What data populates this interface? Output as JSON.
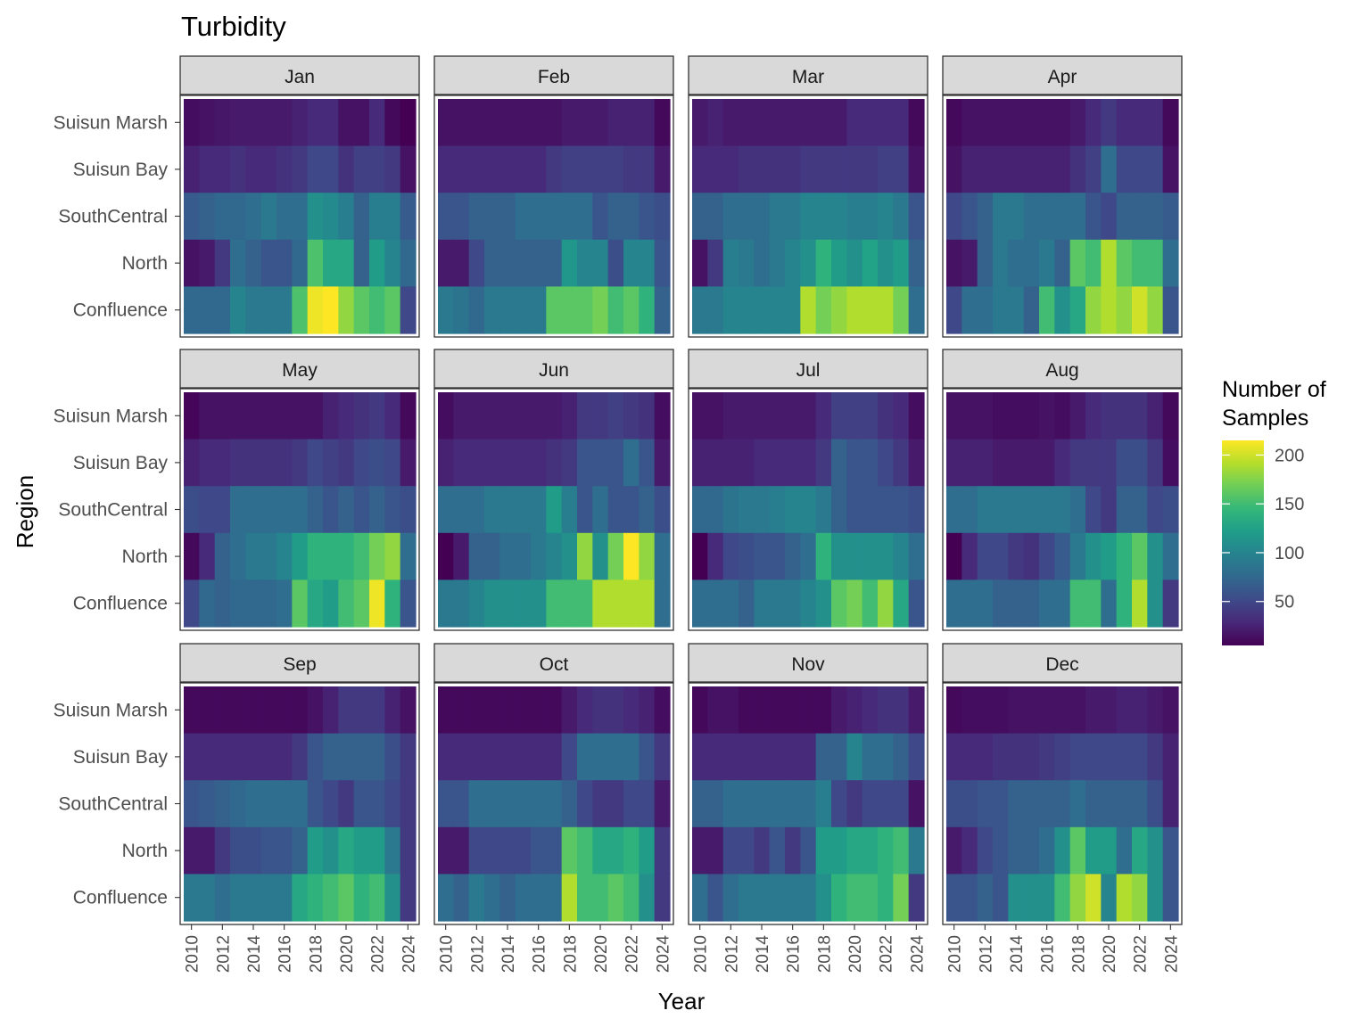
{
  "chart_data": {
    "type": "heatmap",
    "title": "Turbidity",
    "xlabel": "Year",
    "ylabel": "Region",
    "facets": [
      "Jan",
      "Feb",
      "Mar",
      "Apr",
      "May",
      "Jun",
      "Jul",
      "Aug",
      "Sep",
      "Oct",
      "Nov",
      "Dec"
    ],
    "x": [
      2010,
      2011,
      2012,
      2013,
      2014,
      2015,
      2016,
      2017,
      2018,
      2019,
      2020,
      2021,
      2022,
      2023,
      2024
    ],
    "x_ticks": [
      2010,
      2012,
      2014,
      2016,
      2018,
      2020,
      2022,
      2024
    ],
    "regions": [
      "Suisun Marsh",
      "Suisun Bay",
      "SouthCentral",
      "North",
      "Confluence"
    ],
    "legend": {
      "title_line1": "Number of",
      "title_line2": "Samples",
      "ticks": [
        50,
        100,
        150,
        200
      ],
      "min": 5,
      "max": 215,
      "colors": [
        "#440154",
        "#482878",
        "#3e4a89",
        "#31688e",
        "#26828e",
        "#1f9e89",
        "#35b779",
        "#6ece58",
        "#b5de2b",
        "#fde725"
      ]
    },
    "values": {
      "Jan": [
        [
          12,
          15,
          18,
          20,
          20,
          20,
          20,
          25,
          30,
          30,
          15,
          15,
          30,
          10,
          5
        ],
        [
          25,
          30,
          30,
          35,
          30,
          30,
          35,
          40,
          50,
          50,
          35,
          45,
          45,
          40,
          15
        ],
        [
          65,
          70,
          75,
          75,
          80,
          90,
          80,
          80,
          110,
          105,
          95,
          70,
          95,
          95,
          65
        ],
        [
          15,
          20,
          40,
          80,
          70,
          60,
          60,
          75,
          155,
          130,
          130,
          70,
          120,
          100,
          75
        ],
        [
          75,
          75,
          75,
          100,
          90,
          90,
          90,
          155,
          210,
          215,
          180,
          160,
          150,
          160,
          50
        ]
      ],
      "Feb": [
        [
          15,
          15,
          15,
          15,
          15,
          15,
          15,
          15,
          20,
          20,
          20,
          25,
          25,
          25,
          10
        ],
        [
          30,
          30,
          30,
          30,
          30,
          30,
          30,
          40,
          45,
          45,
          45,
          45,
          40,
          40,
          20
        ],
        [
          60,
          60,
          70,
          70,
          70,
          80,
          80,
          80,
          80,
          80,
          60,
          70,
          70,
          60,
          55
        ],
        [
          20,
          20,
          50,
          70,
          70,
          70,
          70,
          70,
          115,
          100,
          100,
          55,
          100,
          100,
          60
        ],
        [
          90,
          85,
          75,
          90,
          90,
          90,
          90,
          160,
          160,
          160,
          170,
          150,
          160,
          140,
          70
        ]
      ],
      "Mar": [
        [
          20,
          25,
          20,
          20,
          20,
          20,
          20,
          20,
          20,
          20,
          30,
          30,
          30,
          30,
          10
        ],
        [
          30,
          30,
          30,
          35,
          35,
          35,
          35,
          40,
          40,
          40,
          40,
          40,
          45,
          45,
          15
        ],
        [
          70,
          70,
          80,
          80,
          80,
          90,
          90,
          100,
          100,
          100,
          95,
          95,
          100,
          90,
          60
        ],
        [
          15,
          40,
          95,
          90,
          80,
          90,
          100,
          110,
          140,
          120,
          110,
          125,
          110,
          120,
          70
        ],
        [
          90,
          90,
          100,
          100,
          100,
          100,
          100,
          190,
          170,
          180,
          190,
          190,
          190,
          170,
          80
        ]
      ],
      "Apr": [
        [
          10,
          15,
          15,
          15,
          15,
          15,
          15,
          15,
          20,
          30,
          40,
          30,
          30,
          30,
          10
        ],
        [
          15,
          25,
          25,
          25,
          25,
          25,
          25,
          25,
          35,
          45,
          80,
          50,
          50,
          50,
          15
        ],
        [
          50,
          60,
          70,
          90,
          90,
          80,
          80,
          80,
          80,
          60,
          50,
          70,
          70,
          70,
          65
        ],
        [
          15,
          20,
          70,
          90,
          80,
          80,
          90,
          70,
          160,
          150,
          190,
          160,
          150,
          150,
          80
        ],
        [
          50,
          80,
          80,
          90,
          90,
          70,
          150,
          110,
          130,
          180,
          190,
          180,
          200,
          180,
          60
        ]
      ],
      "May": [
        [
          8,
          15,
          15,
          15,
          15,
          15,
          15,
          15,
          15,
          25,
          30,
          35,
          40,
          30,
          10
        ],
        [
          25,
          30,
          30,
          35,
          35,
          35,
          35,
          40,
          50,
          45,
          40,
          50,
          55,
          50,
          20
        ],
        [
          55,
          50,
          50,
          80,
          80,
          80,
          80,
          80,
          70,
          60,
          70,
          60,
          70,
          60,
          55
        ],
        [
          10,
          30,
          70,
          80,
          90,
          90,
          100,
          120,
          140,
          140,
          140,
          150,
          170,
          180,
          80
        ],
        [
          50,
          75,
          70,
          75,
          75,
          75,
          80,
          160,
          130,
          120,
          150,
          160,
          210,
          140,
          60
        ]
      ],
      "Jun": [
        [
          12,
          20,
          20,
          20,
          20,
          20,
          20,
          20,
          25,
          40,
          40,
          45,
          40,
          35,
          12
        ],
        [
          25,
          30,
          30,
          30,
          30,
          30,
          30,
          35,
          40,
          60,
          60,
          60,
          80,
          60,
          20
        ],
        [
          80,
          80,
          80,
          90,
          90,
          90,
          90,
          120,
          95,
          60,
          80,
          60,
          60,
          70,
          55
        ],
        [
          5,
          20,
          70,
          70,
          80,
          80,
          90,
          100,
          110,
          180,
          110,
          170,
          215,
          180,
          80
        ],
        [
          90,
          90,
          100,
          110,
          110,
          110,
          110,
          150,
          150,
          150,
          190,
          190,
          190,
          190,
          80
        ]
      ],
      "Jul": [
        [
          15,
          15,
          20,
          20,
          20,
          20,
          20,
          20,
          30,
          45,
          45,
          45,
          35,
          30,
          12
        ],
        [
          25,
          25,
          25,
          25,
          30,
          30,
          30,
          30,
          40,
          70,
          60,
          60,
          50,
          40,
          20
        ],
        [
          75,
          75,
          85,
          90,
          90,
          95,
          100,
          100,
          90,
          70,
          60,
          60,
          60,
          60,
          55
        ],
        [
          5,
          30,
          50,
          55,
          60,
          60,
          70,
          80,
          140,
          110,
          110,
          110,
          110,
          100,
          80
        ],
        [
          80,
          80,
          80,
          70,
          90,
          90,
          90,
          100,
          110,
          160,
          170,
          150,
          180,
          130,
          60
        ]
      ],
      "Aug": [
        [
          15,
          15,
          15,
          12,
          12,
          12,
          15,
          12,
          20,
          30,
          35,
          35,
          35,
          25,
          10
        ],
        [
          25,
          25,
          25,
          20,
          20,
          20,
          20,
          30,
          40,
          40,
          40,
          55,
          55,
          40,
          12
        ],
        [
          80,
          80,
          90,
          90,
          90,
          90,
          90,
          90,
          80,
          50,
          40,
          70,
          70,
          50,
          55
        ],
        [
          5,
          30,
          50,
          50,
          40,
          35,
          50,
          65,
          90,
          110,
          120,
          140,
          160,
          110,
          80
        ],
        [
          80,
          80,
          80,
          70,
          70,
          70,
          80,
          80,
          150,
          150,
          80,
          140,
          190,
          110,
          40
        ]
      ],
      "Sep": [
        [
          10,
          10,
          10,
          10,
          10,
          10,
          10,
          10,
          15,
          25,
          40,
          40,
          40,
          25,
          15
        ],
        [
          30,
          30,
          30,
          30,
          30,
          30,
          30,
          40,
          60,
          70,
          70,
          70,
          70,
          55,
          40
        ],
        [
          60,
          65,
          70,
          75,
          80,
          80,
          80,
          80,
          60,
          50,
          40,
          60,
          60,
          50,
          40
        ],
        [
          20,
          20,
          40,
          55,
          55,
          60,
          60,
          70,
          120,
          110,
          130,
          120,
          120,
          90,
          40
        ],
        [
          90,
          90,
          80,
          90,
          90,
          90,
          90,
          130,
          140,
          150,
          160,
          140,
          150,
          110,
          40
        ]
      ],
      "Oct": [
        [
          10,
          10,
          10,
          10,
          10,
          10,
          10,
          10,
          20,
          30,
          35,
          35,
          30,
          25,
          12
        ],
        [
          30,
          30,
          30,
          30,
          30,
          30,
          30,
          30,
          50,
          80,
          80,
          80,
          80,
          60,
          40
        ],
        [
          60,
          60,
          80,
          80,
          80,
          80,
          80,
          80,
          70,
          50,
          40,
          40,
          50,
          50,
          20
        ],
        [
          20,
          20,
          50,
          50,
          50,
          50,
          60,
          60,
          160,
          150,
          130,
          130,
          140,
          120,
          40
        ],
        [
          80,
          70,
          90,
          80,
          70,
          80,
          80,
          80,
          190,
          150,
          150,
          160,
          150,
          110,
          40
        ]
      ],
      "Nov": [
        [
          10,
          15,
          15,
          10,
          10,
          10,
          10,
          10,
          10,
          20,
          25,
          30,
          35,
          35,
          20
        ],
        [
          30,
          30,
          30,
          30,
          30,
          30,
          30,
          30,
          70,
          70,
          100,
          80,
          80,
          70,
          50
        ],
        [
          70,
          70,
          80,
          80,
          80,
          80,
          80,
          80,
          95,
          50,
          40,
          50,
          50,
          50,
          15
        ],
        [
          20,
          20,
          50,
          50,
          40,
          60,
          40,
          60,
          120,
          120,
          130,
          130,
          140,
          150,
          90
        ],
        [
          80,
          60,
          80,
          90,
          90,
          90,
          90,
          90,
          110,
          140,
          150,
          150,
          140,
          170,
          40
        ]
      ],
      "Dec": [
        [
          10,
          12,
          12,
          12,
          15,
          15,
          15,
          15,
          15,
          20,
          20,
          25,
          25,
          20,
          15
        ],
        [
          30,
          30,
          30,
          35,
          35,
          35,
          40,
          45,
          50,
          50,
          50,
          50,
          50,
          40,
          25
        ],
        [
          55,
          55,
          60,
          60,
          70,
          70,
          70,
          70,
          80,
          70,
          70,
          70,
          70,
          55,
          25
        ],
        [
          20,
          30,
          50,
          60,
          70,
          70,
          80,
          110,
          160,
          120,
          120,
          80,
          130,
          110,
          60
        ],
        [
          60,
          60,
          70,
          60,
          110,
          110,
          110,
          150,
          180,
          200,
          100,
          190,
          180,
          110,
          60
        ]
      ]
    }
  }
}
